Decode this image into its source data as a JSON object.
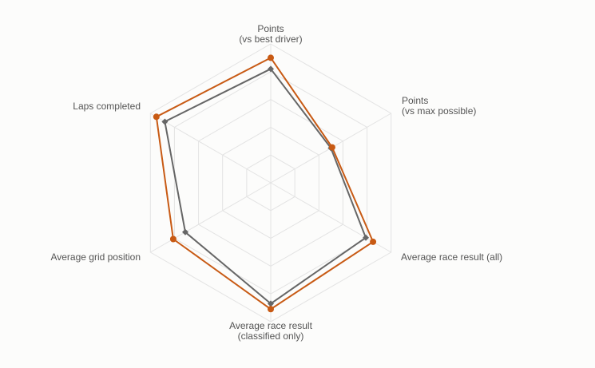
{
  "chart_data": {
    "type": "radar",
    "axes": [
      {
        "label_lines": [
          "Points",
          "(vs best driver)"
        ]
      },
      {
        "label_lines": [
          "Points",
          "(vs max possible)"
        ]
      },
      {
        "label_lines": [
          "Average race result (all)"
        ]
      },
      {
        "label_lines": [
          "Average race result",
          "(classified only)"
        ]
      },
      {
        "label_lines": [
          "Average grid position"
        ]
      },
      {
        "label_lines": [
          "Laps completed"
        ]
      }
    ],
    "range": [
      0,
      1
    ],
    "grid_levels": 5,
    "grid": true,
    "legend": "none",
    "series": [
      {
        "values": [
          0.9,
          0.51,
          0.85,
          0.91,
          0.81,
          0.95
        ],
        "color": "#c85a14",
        "marker": "circle"
      },
      {
        "values": [
          0.82,
          0.5,
          0.79,
          0.87,
          0.71,
          0.88
        ],
        "color": "#666666",
        "marker": "diamond"
      }
    ]
  }
}
